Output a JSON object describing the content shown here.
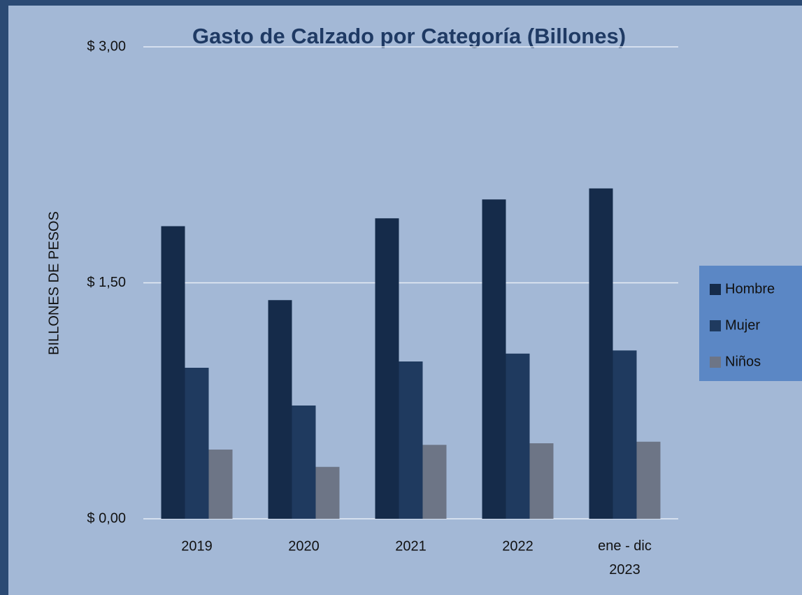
{
  "chart_data": {
    "type": "bar",
    "title": "Gasto de Calzado por Categoría (Billones)",
    "ylabel": "BILLONES DE PESOS",
    "categories": [
      "2019",
      "2020",
      "2021",
      "2022",
      "ene - dic 2023"
    ],
    "series": [
      {
        "name": "Hombre",
        "color": "#152b4a",
        "values": [
          1.86,
          1.39,
          1.91,
          2.03,
          2.1
        ]
      },
      {
        "name": "Mujer",
        "color": "#1f3a5f",
        "values": [
          0.96,
          0.72,
          1.0,
          1.05,
          1.07
        ]
      },
      {
        "name": "Niños",
        "color": "#6d7586",
        "values": [
          0.44,
          0.33,
          0.47,
          0.48,
          0.49
        ]
      }
    ],
    "ylim": [
      0,
      3
    ],
    "yticks": [
      {
        "value": 0,
        "label": "$ 0,00"
      },
      {
        "value": 1.5,
        "label": "$ 1,50"
      },
      {
        "value": 3,
        "label": "$ 3,00"
      }
    ],
    "grid": true,
    "legend": "right"
  }
}
